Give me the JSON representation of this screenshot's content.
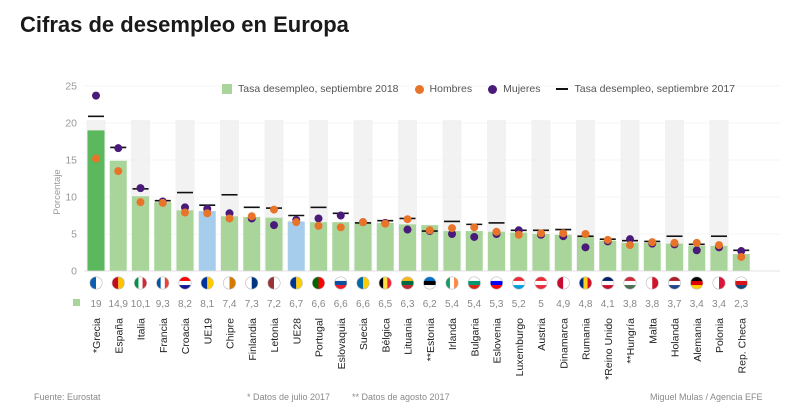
{
  "title": "Cifras de desempleo en Europa",
  "footer": {
    "source": "Fuente: Eurostat",
    "note_july": "* Datos de julio 2017",
    "note_august": "** Datos de agosto 2017",
    "credit": "Miguel Mulas / Agencia EFE"
  },
  "colors": {
    "bar": "#a9d59a",
    "bar_highlight": "#5cb85c",
    "bar_eu": "#a6cdec",
    "hombres": "#e8742a",
    "mujeres": "#4a1a7a",
    "prev": "#111111",
    "axis_text": "#999999"
  },
  "legend": {
    "bar": "Tasa desempleo, septiembre 2018",
    "hombres": "Hombres",
    "mujeres": "Mujeres",
    "prev": "Tasa desempleo, septiembre 2017"
  },
  "chart_data": {
    "type": "bar",
    "title": "Cifras de desempleo en Europa",
    "ylabel": "Porcentaje",
    "xlabel": "",
    "ylim": [
      0,
      25
    ],
    "yticks": [
      0,
      5,
      10,
      15,
      20,
      25
    ],
    "categories": [
      "*Grecia",
      "España",
      "Italia",
      "Francia",
      "Croacia",
      "UE19",
      "Chipre",
      "Finlandia",
      "Letonia",
      "UE28",
      "Portugal",
      "Eslovaquia",
      "Suecia",
      "Bélgica",
      "Lituania",
      "**Estonia",
      "Irlanda",
      "Bulgaria",
      "Eslovenia",
      "Luxemburgo",
      "Austria",
      "Dinamarca",
      "Rumania",
      "*Reino Unido",
      "**Hungría",
      "Malta",
      "Holanda",
      "Alemania",
      "Polonia",
      "Rep. Checa"
    ],
    "value_labels": [
      "19",
      "14,9",
      "10,1",
      "9,3",
      "8,2",
      "8,1",
      "7,4",
      "7,3",
      "7,2",
      "6,7",
      "6,6",
      "6,6",
      "6,6",
      "6,5",
      "6,3",
      "6,2",
      "5,4",
      "5,4",
      "5,3",
      "5,2",
      "5",
      "4,9",
      "4,8",
      "4,1",
      "3,8",
      "3,8",
      "3,7",
      "3,4",
      "3,4",
      "2,3"
    ],
    "series": [
      {
        "name": "Tasa desempleo, septiembre 2018",
        "values": [
          19,
          14.9,
          10.1,
          9.3,
          8.2,
          8.1,
          7.4,
          7.3,
          7.2,
          6.7,
          6.6,
          6.6,
          6.6,
          6.5,
          6.3,
          6.2,
          5.4,
          5.4,
          5.3,
          5.2,
          5,
          4.9,
          4.8,
          4.1,
          3.8,
          3.8,
          3.7,
          3.4,
          3.4,
          2.3
        ]
      },
      {
        "name": "Hombres",
        "values": [
          15.2,
          13.5,
          9.3,
          9.2,
          7.9,
          7.8,
          7.1,
          7.4,
          8.3,
          6.6,
          6.1,
          5.9,
          6.6,
          6.4,
          7.0,
          5.5,
          5.8,
          5.9,
          5.3,
          4.9,
          5.1,
          5.1,
          5.0,
          4.2,
          3.5,
          3.9,
          3.8,
          3.8,
          3.5,
          1.9
        ]
      },
      {
        "name": "Mujeres",
        "values": [
          23.7,
          16.6,
          11.2,
          9.4,
          8.6,
          8.4,
          7.8,
          7.1,
          6.2,
          6.9,
          7.1,
          7.5,
          6.6,
          6.5,
          5.6,
          5.4,
          5.0,
          4.6,
          5.0,
          5.5,
          4.9,
          4.7,
          3.2,
          4.0,
          4.3,
          3.7,
          3.6,
          2.8,
          3.2,
          2.7
        ]
      },
      {
        "name": "Tasa desempleo, septiembre 2017",
        "values": [
          20.9,
          16.7,
          11.1,
          9.5,
          10.6,
          8.9,
          10.3,
          8.6,
          8.5,
          7.5,
          8.6,
          7.8,
          6.5,
          6.8,
          7.1,
          5.4,
          6.7,
          6.3,
          6.5,
          5.5,
          5.5,
          5.6,
          4.7,
          4.3,
          4.1,
          4.0,
          4.7,
          3.6,
          4.7,
          2.8
        ]
      }
    ],
    "highlight": "*Grecia",
    "eu_aggregates": [
      "UE19",
      "UE28"
    ],
    "flags": [
      "gr",
      "es",
      "it",
      "fr",
      "hr",
      "eu",
      "cy",
      "fi",
      "lv",
      "eu",
      "pt",
      "sk",
      "se",
      "be",
      "lt",
      "ee",
      "ie",
      "bg",
      "si",
      "lu",
      "at",
      "dk",
      "ro",
      "gb",
      "hu",
      "mt",
      "nl",
      "de",
      "pl",
      "cz"
    ],
    "grid": true,
    "legend_position": "top-right"
  }
}
